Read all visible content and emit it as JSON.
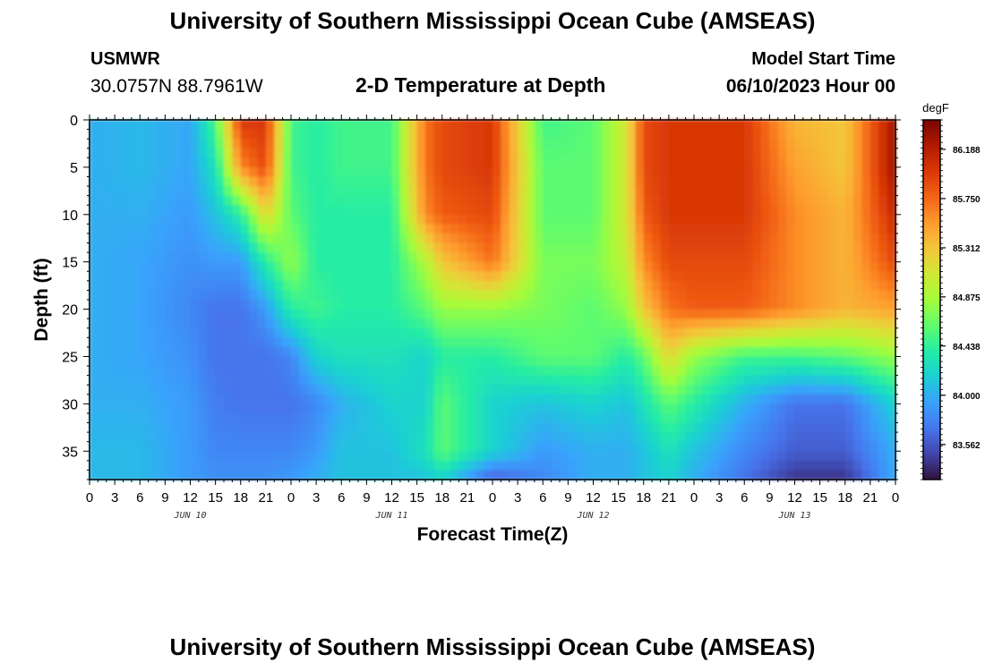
{
  "page": {
    "title": "University of Southern Mississippi Ocean Cube (AMSEAS)",
    "repeated_title": "University of Southern Mississippi Ocean Cube (AMSEAS)",
    "station": "USMWR",
    "coordinates": "30.0757N  88.7961W",
    "subtitle": "2-D Temperature at Depth",
    "model_start_label": "Model Start Time",
    "model_start_value": "06/10/2023 Hour 00"
  },
  "chart_data": {
    "type": "heatmap",
    "title": "2-D Temperature at Depth",
    "xlabel": "Forecast Time(Z)",
    "ylabel": "Depth (ft)",
    "x_unit": "forecast hours from model start",
    "xlim": [
      0,
      96
    ],
    "ylim": [
      0,
      38
    ],
    "y_inverted": true,
    "x_tick_labels": [
      "0",
      "3",
      "6",
      "9",
      "12",
      "15",
      "18",
      "21",
      "0",
      "3",
      "6",
      "9",
      "12",
      "15",
      "18",
      "21",
      "0",
      "3",
      "6",
      "9",
      "12",
      "15",
      "18",
      "21",
      "0",
      "3",
      "6",
      "9",
      "12",
      "15",
      "18",
      "21",
      "0"
    ],
    "day_labels": [
      {
        "label": "JUN 10",
        "hour": 12
      },
      {
        "label": "JUN 11",
        "hour": 36
      },
      {
        "label": "JUN 12",
        "hour": 60
      },
      {
        "label": "JUN 13",
        "hour": 84
      }
    ],
    "y_ticks": [
      0,
      5,
      10,
      15,
      20,
      25,
      30,
      35
    ],
    "colorbar": {
      "unit": "degF",
      "range": [
        83.25,
        86.45
      ],
      "tick_labels": [
        "86.188",
        "85.750",
        "85.312",
        "84.875",
        "84.438",
        "84.000",
        "83.562"
      ],
      "tick_values": [
        86.188,
        85.75,
        85.312,
        84.875,
        84.438,
        84.0,
        83.562
      ],
      "colors": [
        "#30123b",
        "#4145ab",
        "#4675ed",
        "#39a2fc",
        "#1bcfd4",
        "#24eca6",
        "#61fc6c",
        "#a4fc3b",
        "#d1e834",
        "#f3c63a",
        "#fe9b2d",
        "#f36315",
        "#d93806",
        "#b11901",
        "#7a0402"
      ]
    },
    "grid": false,
    "approx_temperature_field_degF": {
      "hours": [
        0,
        6,
        12,
        15,
        18,
        21,
        24,
        27,
        30,
        36,
        40,
        42,
        48,
        54,
        60,
        64,
        66,
        69,
        72,
        78,
        84,
        90,
        96
      ],
      "depths_ft": [
        0,
        5,
        10,
        15,
        20,
        25,
        30,
        35,
        38
      ],
      "values": [
        [
          84.0,
          84.05,
          83.95,
          84.55,
          86.0,
          86.0,
          84.5,
          84.4,
          84.5,
          84.5,
          85.7,
          85.9,
          86.0,
          84.5,
          84.6,
          85.1,
          85.9,
          86.0,
          86.0,
          86.0,
          85.4,
          85.3,
          86.3
        ],
        [
          84.0,
          84.05,
          83.95,
          84.3,
          85.6,
          85.9,
          84.5,
          84.4,
          84.5,
          84.5,
          85.7,
          85.9,
          86.0,
          84.6,
          84.6,
          85.1,
          85.9,
          86.0,
          86.0,
          86.0,
          85.5,
          85.3,
          86.3
        ],
        [
          84.0,
          84.0,
          83.9,
          84.1,
          84.4,
          85.2,
          84.6,
          84.4,
          84.4,
          84.4,
          85.6,
          85.8,
          85.9,
          84.6,
          84.6,
          85.1,
          85.8,
          86.0,
          86.0,
          86.0,
          85.6,
          85.4,
          86.1
        ],
        [
          84.0,
          83.95,
          83.85,
          83.9,
          83.9,
          84.4,
          84.8,
          84.4,
          84.4,
          84.4,
          84.9,
          85.3,
          85.7,
          84.7,
          84.7,
          85.0,
          85.6,
          85.9,
          85.9,
          85.9,
          85.6,
          85.4,
          85.9
        ],
        [
          84.0,
          83.95,
          83.8,
          83.7,
          83.7,
          83.9,
          84.4,
          84.5,
          84.4,
          84.4,
          84.6,
          84.8,
          84.8,
          84.7,
          84.6,
          84.8,
          85.3,
          85.7,
          85.8,
          85.8,
          85.6,
          85.4,
          85.5
        ],
        [
          84.0,
          83.95,
          83.85,
          83.7,
          83.7,
          83.7,
          83.8,
          84.2,
          84.3,
          84.3,
          84.2,
          84.4,
          84.4,
          84.6,
          84.6,
          84.4,
          84.6,
          85.2,
          84.8,
          84.5,
          84.5,
          84.6,
          84.8
        ],
        [
          84.0,
          84.0,
          83.9,
          83.75,
          83.7,
          83.7,
          83.7,
          83.8,
          84.0,
          84.2,
          84.2,
          84.6,
          84.2,
          84.1,
          84.2,
          84.1,
          84.3,
          84.6,
          84.4,
          84.0,
          83.7,
          83.7,
          84.2
        ],
        [
          84.05,
          84.05,
          83.9,
          83.8,
          83.8,
          83.8,
          83.8,
          83.9,
          84.1,
          84.1,
          84.3,
          84.6,
          84.2,
          83.9,
          84.0,
          84.0,
          84.1,
          84.3,
          84.1,
          83.8,
          83.6,
          83.6,
          84.0
        ],
        [
          84.05,
          84.05,
          83.9,
          83.85,
          83.85,
          83.85,
          83.9,
          84.0,
          84.1,
          84.1,
          84.1,
          84.2,
          83.6,
          83.8,
          84.0,
          84.0,
          84.1,
          84.2,
          84.0,
          83.7,
          83.4,
          83.4,
          84.0
        ]
      ]
    }
  }
}
